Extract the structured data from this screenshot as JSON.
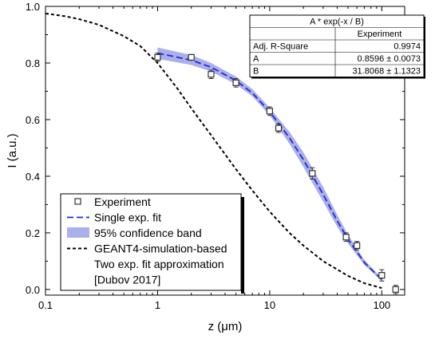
{
  "chart_data": {
    "type": "scatter",
    "x_scale": "log",
    "xlabel": "z (μm)",
    "ylabel": "I (a.u.)",
    "xlim": [
      0.1,
      160
    ],
    "ylim": [
      -0.02,
      1.0
    ],
    "x_ticks": [
      0.1,
      1,
      10,
      100
    ],
    "x_tick_labels": [
      "0.1",
      "1",
      "10",
      "100"
    ],
    "y_ticks": [
      0.0,
      0.2,
      0.4,
      0.6,
      0.8,
      1.0
    ],
    "y_tick_labels": [
      "0.0",
      "0.2",
      "0.4",
      "0.6",
      "0.8",
      "1.0"
    ],
    "grid": false,
    "legend_position": "bottom-left",
    "series": [
      {
        "name": "Experiment",
        "kind": "points",
        "x": [
          1,
          2,
          3,
          5,
          10,
          12,
          24,
          48,
          60,
          100,
          133
        ],
        "y": [
          0.82,
          0.82,
          0.76,
          0.73,
          0.63,
          0.57,
          0.41,
          0.185,
          0.155,
          0.05,
          0.0
        ],
        "x_err": [
          0.05,
          0.1,
          0.15,
          0.25,
          0.5,
          0.6,
          1.2,
          2.4,
          3.0,
          5.0,
          6.5
        ],
        "y_err": [
          0.015,
          0.01,
          0.015,
          0.015,
          0.015,
          0.015,
          0.02,
          0.015,
          0.015,
          0.02,
          0.015
        ]
      },
      {
        "name": "Single exp. fit",
        "kind": "fit",
        "x": [
          1,
          2,
          3,
          5,
          7,
          10,
          15,
          20,
          30,
          40,
          50,
          70,
          100
        ],
        "y": [
          0.835,
          0.81,
          0.785,
          0.738,
          0.694,
          0.628,
          0.536,
          0.458,
          0.336,
          0.243,
          0.177,
          0.095,
          0.035
        ]
      },
      {
        "name": "95% confidence band",
        "kind": "band",
        "x": [
          1,
          2,
          3,
          5,
          7,
          10,
          15,
          20,
          30,
          40,
          50,
          70,
          100
        ],
        "low": [
          0.815,
          0.793,
          0.77,
          0.725,
          0.682,
          0.615,
          0.515,
          0.432,
          0.31,
          0.222,
          0.162,
          0.086,
          0.03
        ],
        "high": [
          0.855,
          0.828,
          0.8,
          0.752,
          0.708,
          0.642,
          0.557,
          0.484,
          0.362,
          0.264,
          0.193,
          0.104,
          0.04
        ]
      },
      {
        "name": "GEANT4-simulation-based Two exp. fit approximation [Dubov 2017]",
        "kind": "simulation",
        "x": [
          0.1,
          0.15,
          0.2,
          0.3,
          0.5,
          0.7,
          1,
          1.5,
          2,
          3,
          5,
          7,
          10,
          15,
          20,
          30,
          50,
          70,
          100
        ],
        "y": [
          0.975,
          0.965,
          0.955,
          0.935,
          0.895,
          0.86,
          0.8,
          0.71,
          0.64,
          0.545,
          0.425,
          0.35,
          0.275,
          0.2,
          0.155,
          0.1,
          0.048,
          0.022,
          0.005
        ]
      }
    ],
    "legend": {
      "items": [
        "Experiment",
        "Single exp. fit",
        "95% confidence band",
        "GEANT4-simulation-based",
        "Two exp. fit approximation",
        "[Dubov 2017]"
      ]
    },
    "stats_table": {
      "title": "A * exp(-x / B)",
      "column_header": "Experiment",
      "rows": [
        {
          "label": "Adj. R-Square",
          "value": "0.9974"
        },
        {
          "label": "A",
          "value": "0.8596 ± 0.0073"
        },
        {
          "label": "B",
          "value": "31.8068 ± 1.1323"
        }
      ]
    },
    "colors": {
      "fit": "#1f2bd6",
      "band": "#aab0ea",
      "simulation": "#000000",
      "points": "#333333"
    }
  }
}
